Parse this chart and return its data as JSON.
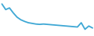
{
  "x": [
    0,
    1,
    2,
    3,
    4,
    5,
    6,
    7,
    8,
    9,
    10,
    11,
    12,
    13,
    14,
    15,
    16,
    17,
    18,
    19,
    20,
    21,
    22,
    23,
    24
  ],
  "y": [
    0.95,
    0.78,
    0.83,
    0.68,
    0.55,
    0.47,
    0.42,
    0.38,
    0.36,
    0.34,
    0.33,
    0.34,
    0.33,
    0.32,
    0.31,
    0.3,
    0.29,
    0.28,
    0.27,
    0.26,
    0.25,
    0.38,
    0.18,
    0.28,
    0.22
  ],
  "line_color": "#3fa8d5",
  "linewidth": 1.3,
  "background_color": "#ffffff",
  "ylim": [
    0.0,
    1.05
  ],
  "xlim": [
    -0.3,
    24.3
  ]
}
